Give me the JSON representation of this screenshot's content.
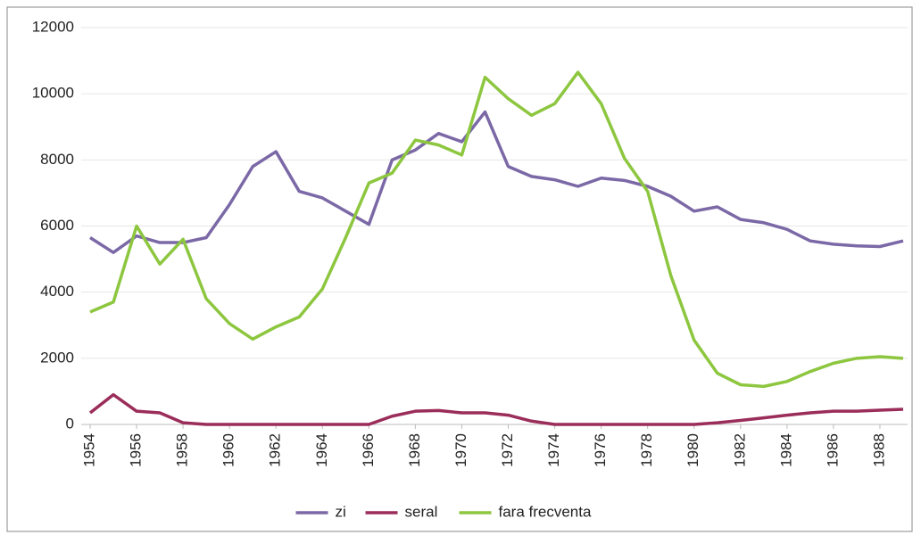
{
  "chart_data": {
    "type": "line",
    "x": [
      1954,
      1955,
      1956,
      1957,
      1958,
      1959,
      1960,
      1961,
      1962,
      1963,
      1964,
      1965,
      1966,
      1967,
      1968,
      1969,
      1970,
      1971,
      1972,
      1973,
      1974,
      1975,
      1976,
      1977,
      1978,
      1979,
      1980,
      1981,
      1982,
      1983,
      1984,
      1985,
      1986,
      1987,
      1988,
      1989
    ],
    "series": [
      {
        "name": "zi",
        "color": "#7b68a6",
        "values": [
          5650,
          5200,
          5700,
          5500,
          5500,
          5650,
          6650,
          7800,
          8250,
          7050,
          6850,
          6450,
          6050,
          8000,
          8300,
          8800,
          8550,
          9450,
          7800,
          7500,
          7400,
          7200,
          7450,
          7380,
          7200,
          6900,
          6450,
          6580,
          6200,
          6100,
          5900,
          5550,
          5450,
          5400,
          5380,
          5550
        ]
      },
      {
        "name": "seral",
        "color": "#9b2d5a",
        "values": [
          350,
          900,
          400,
          350,
          50,
          0,
          0,
          0,
          0,
          0,
          0,
          0,
          0,
          250,
          400,
          420,
          350,
          350,
          280,
          100,
          0,
          0,
          0,
          0,
          0,
          0,
          0,
          50,
          120,
          200,
          280,
          350,
          400,
          400,
          430,
          460
        ]
      },
      {
        "name": "fara frecventa",
        "color": "#8dc63f",
        "values": [
          3400,
          3700,
          6000,
          4850,
          5600,
          3800,
          3050,
          2580,
          2950,
          3250,
          4100,
          5650,
          7300,
          7600,
          8600,
          8450,
          8150,
          10500,
          9850,
          9350,
          9700,
          10650,
          9700,
          8050,
          7050,
          4500,
          2550,
          1550,
          1200,
          1150,
          1300,
          1600,
          1850,
          2000,
          2050,
          2000
        ]
      }
    ],
    "xlim": [
      1954,
      1989
    ],
    "xticks": [
      1954,
      1956,
      1958,
      1960,
      1962,
      1964,
      1966,
      1968,
      1970,
      1972,
      1974,
      1976,
      1978,
      1980,
      1982,
      1984,
      1986,
      1988
    ],
    "ylim": [
      0,
      12000
    ],
    "yticks": [
      0,
      2000,
      4000,
      6000,
      8000,
      10000,
      12000
    ],
    "grid": true,
    "legend": "bottom"
  }
}
